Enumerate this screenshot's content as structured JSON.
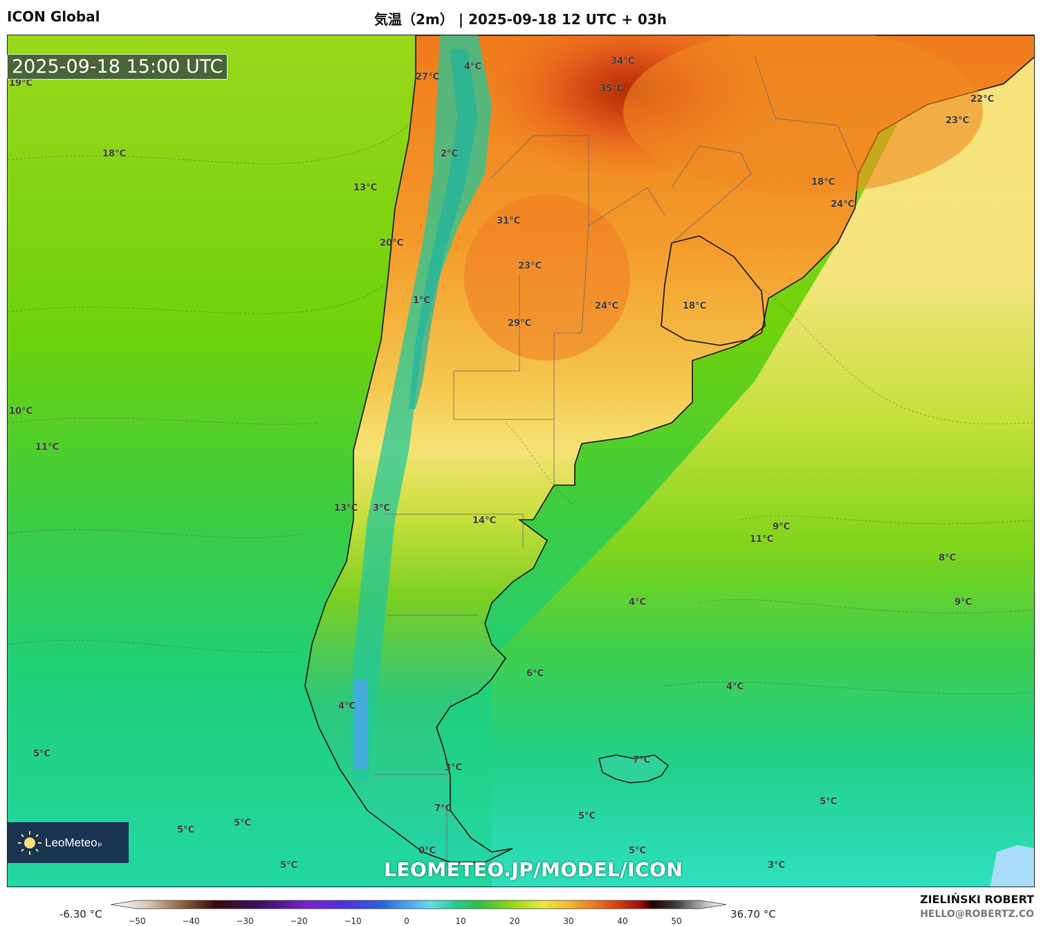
{
  "header": {
    "model": "ICON Global",
    "title": "気温（2m） | 2025-09-18 12 UTC + 03h"
  },
  "valid_time": "2025-09-18 15:00 UTC",
  "watermark": "LEOMETEO.JP/MODEL/ICON",
  "logo": {
    "name": "LeoMeteo",
    "suffix": "jp",
    "icon": "sun-icon"
  },
  "author": {
    "name": "ZIELIŃSKI ROBERT",
    "email": "HELLO@ROBERTZ.CO"
  },
  "colorbar": {
    "min_label": "-6.30 °C",
    "max_label": "36.70 °C",
    "ticks": [
      "−50",
      "−40",
      "−30",
      "−20",
      "−10",
      "0",
      "10",
      "20",
      "30",
      "40",
      "50"
    ],
    "tick_values": [
      -50,
      -40,
      -30,
      -20,
      -10,
      0,
      10,
      20,
      30,
      40,
      50
    ],
    "range": [
      -55,
      55
    ]
  },
  "temperature_labels": [
    {
      "id": "t01",
      "text": "19°C"
    },
    {
      "id": "t02",
      "text": "27°C"
    },
    {
      "id": "t03",
      "text": "4°C"
    },
    {
      "id": "t04",
      "text": "34°C"
    },
    {
      "id": "t05",
      "text": "35°C"
    },
    {
      "id": "t06",
      "text": "22°C"
    },
    {
      "id": "t07",
      "text": "23°C"
    },
    {
      "id": "t08",
      "text": "18°C"
    },
    {
      "id": "t09",
      "text": "2°C"
    },
    {
      "id": "t10",
      "text": "13°C"
    },
    {
      "id": "t11",
      "text": "18°C"
    },
    {
      "id": "t12",
      "text": "24°C"
    },
    {
      "id": "t13",
      "text": "31°C"
    },
    {
      "id": "t14",
      "text": "20°C"
    },
    {
      "id": "t15",
      "text": "23°C"
    },
    {
      "id": "t16",
      "text": "24°C"
    },
    {
      "id": "t17",
      "text": "18°C"
    },
    {
      "id": "t18",
      "text": "1°C"
    },
    {
      "id": "t19",
      "text": "29°C"
    },
    {
      "id": "t20",
      "text": "10°C"
    },
    {
      "id": "t21",
      "text": "11°C"
    },
    {
      "id": "t22",
      "text": "13°C"
    },
    {
      "id": "t23",
      "text": "3°C"
    },
    {
      "id": "t24",
      "text": "14°C"
    },
    {
      "id": "t25",
      "text": "9°C"
    },
    {
      "id": "t26",
      "text": "11°C"
    },
    {
      "id": "t27",
      "text": "8°C"
    },
    {
      "id": "t28",
      "text": "4°C"
    },
    {
      "id": "t29",
      "text": "9°C"
    },
    {
      "id": "t30",
      "text": "6°C"
    },
    {
      "id": "t31",
      "text": "4°C"
    },
    {
      "id": "t32",
      "text": "4°C"
    },
    {
      "id": "t33",
      "text": "5°C"
    },
    {
      "id": "t34",
      "text": "3°C"
    },
    {
      "id": "t35",
      "text": "7°C"
    },
    {
      "id": "t36",
      "text": "7°C"
    },
    {
      "id": "t37",
      "text": "5°C"
    },
    {
      "id": "t38",
      "text": "5°C"
    },
    {
      "id": "t39",
      "text": "5°C"
    },
    {
      "id": "t40",
      "text": "5°C"
    },
    {
      "id": "t41",
      "text": "0°C"
    },
    {
      "id": "t42",
      "text": "5°C"
    },
    {
      "id": "t43",
      "text": "5°C"
    },
    {
      "id": "t44",
      "text": "3°C"
    }
  ]
}
